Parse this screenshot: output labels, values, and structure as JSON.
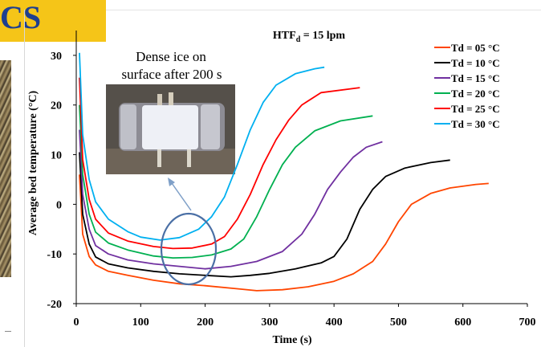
{
  "slide": {
    "title": "CS"
  },
  "chart_data": {
    "type": "line",
    "title": "HTF",
    "title_sub": "d",
    "title_rest": " = 15 lpm",
    "xlabel": "Time (s)",
    "ylabel": "Average bed temperature  (°C)",
    "xlim": [
      0,
      700
    ],
    "ylim": [
      -20,
      35
    ],
    "xticks": [
      0,
      100,
      200,
      300,
      400,
      500,
      600,
      700
    ],
    "yticks": [
      -20,
      -10,
      0,
      10,
      20,
      30
    ],
    "grid": false,
    "legend_position": "top-right",
    "annotation": {
      "line1": "Dense ice on",
      "line2": "surface after 200 s"
    },
    "series": [
      {
        "name": "Td = 05 °C",
        "color": "#ff4500",
        "points": [
          [
            5,
            6
          ],
          [
            10,
            -6
          ],
          [
            20,
            -10.5
          ],
          [
            30,
            -12.2
          ],
          [
            50,
            -13.5
          ],
          [
            80,
            -14.3
          ],
          [
            120,
            -15.3
          ],
          [
            160,
            -16
          ],
          [
            200,
            -16.4
          ],
          [
            250,
            -17
          ],
          [
            280,
            -17.4
          ],
          [
            320,
            -17.2
          ],
          [
            360,
            -16.6
          ],
          [
            400,
            -15.5
          ],
          [
            430,
            -14
          ],
          [
            460,
            -11.5
          ],
          [
            480,
            -8
          ],
          [
            500,
            -3.5
          ],
          [
            520,
            0
          ],
          [
            550,
            2.2
          ],
          [
            580,
            3.3
          ],
          [
            620,
            4
          ],
          [
            640,
            4.2
          ]
        ]
      },
      {
        "name": "Td = 10 °C",
        "color": "#000000",
        "points": [
          [
            5,
            10.5
          ],
          [
            10,
            -2
          ],
          [
            20,
            -8
          ],
          [
            30,
            -10.6
          ],
          [
            50,
            -12
          ],
          [
            80,
            -12.8
          ],
          [
            120,
            -13.5
          ],
          [
            160,
            -14
          ],
          [
            200,
            -14.3
          ],
          [
            240,
            -14.6
          ],
          [
            270,
            -14.3
          ],
          [
            300,
            -13.9
          ],
          [
            340,
            -13
          ],
          [
            380,
            -11.8
          ],
          [
            400,
            -10.5
          ],
          [
            420,
            -7
          ],
          [
            440,
            -1
          ],
          [
            460,
            3
          ],
          [
            480,
            5.6
          ],
          [
            510,
            7.3
          ],
          [
            550,
            8.4
          ],
          [
            580,
            8.9
          ]
        ]
      },
      {
        "name": "Td = 15 °C",
        "color": "#7030a0",
        "points": [
          [
            5,
            15
          ],
          [
            10,
            2
          ],
          [
            20,
            -5
          ],
          [
            30,
            -8.3
          ],
          [
            50,
            -10
          ],
          [
            80,
            -11.2
          ],
          [
            120,
            -12
          ],
          [
            160,
            -12.5
          ],
          [
            200,
            -13
          ],
          [
            240,
            -12.5
          ],
          [
            280,
            -11.5
          ],
          [
            320,
            -9.5
          ],
          [
            350,
            -6
          ],
          [
            370,
            -2
          ],
          [
            390,
            3
          ],
          [
            410,
            6.5
          ],
          [
            430,
            9.5
          ],
          [
            450,
            11.5
          ],
          [
            475,
            12.6
          ]
        ]
      },
      {
        "name": "Td = 20 °C",
        "color": "#00b050",
        "points": [
          [
            5,
            20
          ],
          [
            10,
            6
          ],
          [
            20,
            -2
          ],
          [
            30,
            -5.6
          ],
          [
            50,
            -7.8
          ],
          [
            80,
            -9.2
          ],
          [
            120,
            -10.4
          ],
          [
            150,
            -10.8
          ],
          [
            180,
            -10.7
          ],
          [
            210,
            -10.2
          ],
          [
            240,
            -9
          ],
          [
            260,
            -7
          ],
          [
            280,
            -2.5
          ],
          [
            300,
            3
          ],
          [
            320,
            8
          ],
          [
            340,
            11.5
          ],
          [
            370,
            14.8
          ],
          [
            410,
            16.8
          ],
          [
            460,
            17.8
          ]
        ]
      },
      {
        "name": "Td = 25 °C",
        "color": "#ff0000",
        "points": [
          [
            5,
            25.5
          ],
          [
            10,
            9
          ],
          [
            20,
            1
          ],
          [
            30,
            -3
          ],
          [
            50,
            -5.8
          ],
          [
            80,
            -7.4
          ],
          [
            120,
            -8.5
          ],
          [
            150,
            -8.9
          ],
          [
            180,
            -8.8
          ],
          [
            210,
            -8
          ],
          [
            230,
            -6.5
          ],
          [
            250,
            -3
          ],
          [
            270,
            2
          ],
          [
            290,
            8
          ],
          [
            310,
            13
          ],
          [
            330,
            17
          ],
          [
            350,
            20
          ],
          [
            380,
            22.5
          ],
          [
            440,
            23.5
          ]
        ]
      },
      {
        "name": "Td = 30 °C",
        "color": "#00b0f0",
        "points": [
          [
            5,
            30.5
          ],
          [
            10,
            14
          ],
          [
            20,
            5
          ],
          [
            30,
            0.5
          ],
          [
            50,
            -3
          ],
          [
            80,
            -5.5
          ],
          [
            100,
            -6.6
          ],
          [
            130,
            -7.2
          ],
          [
            160,
            -6.7
          ],
          [
            190,
            -5
          ],
          [
            210,
            -2.5
          ],
          [
            230,
            1.5
          ],
          [
            250,
            8
          ],
          [
            270,
            15
          ],
          [
            290,
            20.5
          ],
          [
            310,
            24
          ],
          [
            340,
            26.3
          ],
          [
            370,
            27.3
          ],
          [
            385,
            27.6
          ]
        ]
      }
    ]
  }
}
